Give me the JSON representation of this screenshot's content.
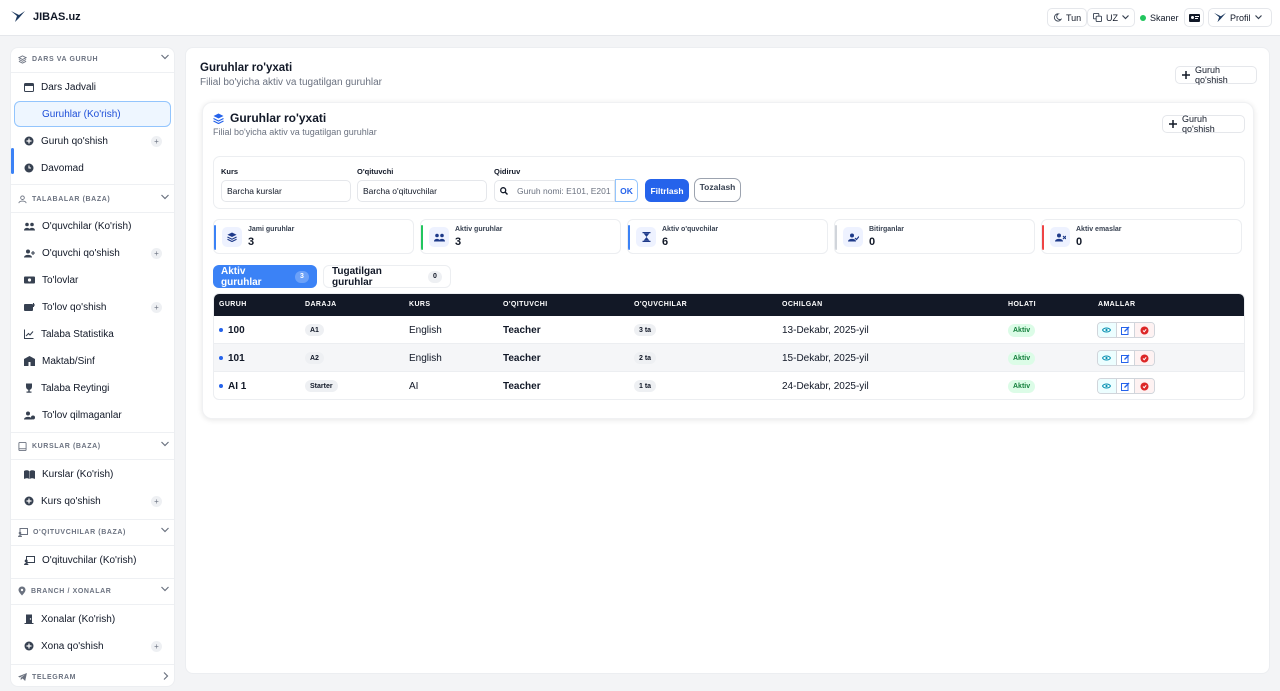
{
  "app": {
    "name": "JIBAS.uz"
  },
  "topbar": {
    "night_label": "Tun",
    "lang_label": "UZ",
    "scanner_label": "Skaner",
    "profile_label": "Profil"
  },
  "sidebar": {
    "sections": [
      {
        "title": "DARS VA GURUH",
        "items": [
          {
            "label": "Dars Jadvali"
          },
          {
            "label": "Guruhlar (Ko'rish)"
          },
          {
            "label": "Guruh qo'shish"
          },
          {
            "label": "Davomad"
          }
        ]
      },
      {
        "title": "TALABALAR (BAZA)",
        "items": [
          {
            "label": "O'quvchilar (Ko'rish)"
          },
          {
            "label": "O'quvchi qo'shish"
          },
          {
            "label": "To'lovlar"
          },
          {
            "label": "To'lov qo'shish"
          },
          {
            "label": "Talaba Statistika"
          },
          {
            "label": "Maktab/Sinf"
          },
          {
            "label": "Talaba Reytingi"
          },
          {
            "label": "To'lov qilmaganlar"
          }
        ]
      },
      {
        "title": "KURSLAR (BAZA)",
        "items": [
          {
            "label": "Kurslar (Ko'rish)"
          },
          {
            "label": "Kurs qo'shish"
          }
        ]
      },
      {
        "title": "O'QITUVCHILAR (BAZA)",
        "items": [
          {
            "label": "O'qituvchilar (Ko'rish)"
          }
        ]
      },
      {
        "title": "BRANCH / XONALAR",
        "items": [
          {
            "label": "Xonalar (Ko'rish)"
          },
          {
            "label": "Xona qo'shish"
          }
        ]
      },
      {
        "title": "TELEGRAM",
        "items": []
      }
    ],
    "plus_symbol": "+"
  },
  "page": {
    "title": "Guruhlar ro'yxati",
    "subtitle": "Filial bo'yicha aktiv va tugatilgan guruhlar",
    "add_button": "Guruh qo'shish"
  },
  "card": {
    "title": "Guruhlar ro'yxati",
    "subtitle": "Filial bo'yicha aktiv va tugatilgan guruhlar",
    "add_button": "Guruh qo'shish"
  },
  "filters": {
    "course_label": "Kurs",
    "course_value": "Barcha kurslar",
    "teacher_label": "O'qituvchi",
    "teacher_value": "Barcha o'qituvchilar",
    "search_label": "Qidiruv",
    "search_placeholder": "Guruh nomi: E101, E201",
    "ok_button": "OK",
    "filter_button": "Filtrlash",
    "clear_button": "Tozalash"
  },
  "stats": [
    {
      "label": "Jami guruhlar",
      "value": "3",
      "accent": "#3b82f6"
    },
    {
      "label": "Aktiv guruhlar",
      "value": "3",
      "accent": "#22c55e"
    },
    {
      "label": "Aktiv o'quvchilar",
      "value": "6",
      "accent": "#3b82f6"
    },
    {
      "label": "Bitirganlar",
      "value": "0",
      "accent": "#d1d5db"
    },
    {
      "label": "Aktiv emaslar",
      "value": "0",
      "accent": "#ef4444"
    }
  ],
  "tabs": [
    {
      "label": "Aktiv guruhlar",
      "count": "3"
    },
    {
      "label": "Tugatilgan guruhlar",
      "count": "0"
    }
  ],
  "table": {
    "columns": [
      "GURUH",
      "DARAJA",
      "KURS",
      "O'QITUVCHI",
      "O'QUVCHILAR",
      "OCHILGAN",
      "HOLATI",
      "AMALLAR"
    ],
    "rows": [
      {
        "group": "100",
        "level": "A1",
        "course": "English",
        "teacher": "Teacher",
        "students": "3 ta",
        "opened": "13-Dekabr, 2025-yil",
        "status": "Aktiv"
      },
      {
        "group": "101",
        "level": "A2",
        "course": "English",
        "teacher": "Teacher",
        "students": "2 ta",
        "opened": "15-Dekabr, 2025-yil",
        "status": "Aktiv"
      },
      {
        "group": "AI 1",
        "level": "Starter",
        "course": "AI",
        "teacher": "Teacher",
        "students": "1 ta",
        "opened": "24-Dekabr, 2025-yil",
        "status": "Aktiv"
      }
    ]
  },
  "colors": {
    "accent": "#2563eb",
    "header_dark": "#121826",
    "success": "#22c55e",
    "danger": "#ef4444"
  }
}
